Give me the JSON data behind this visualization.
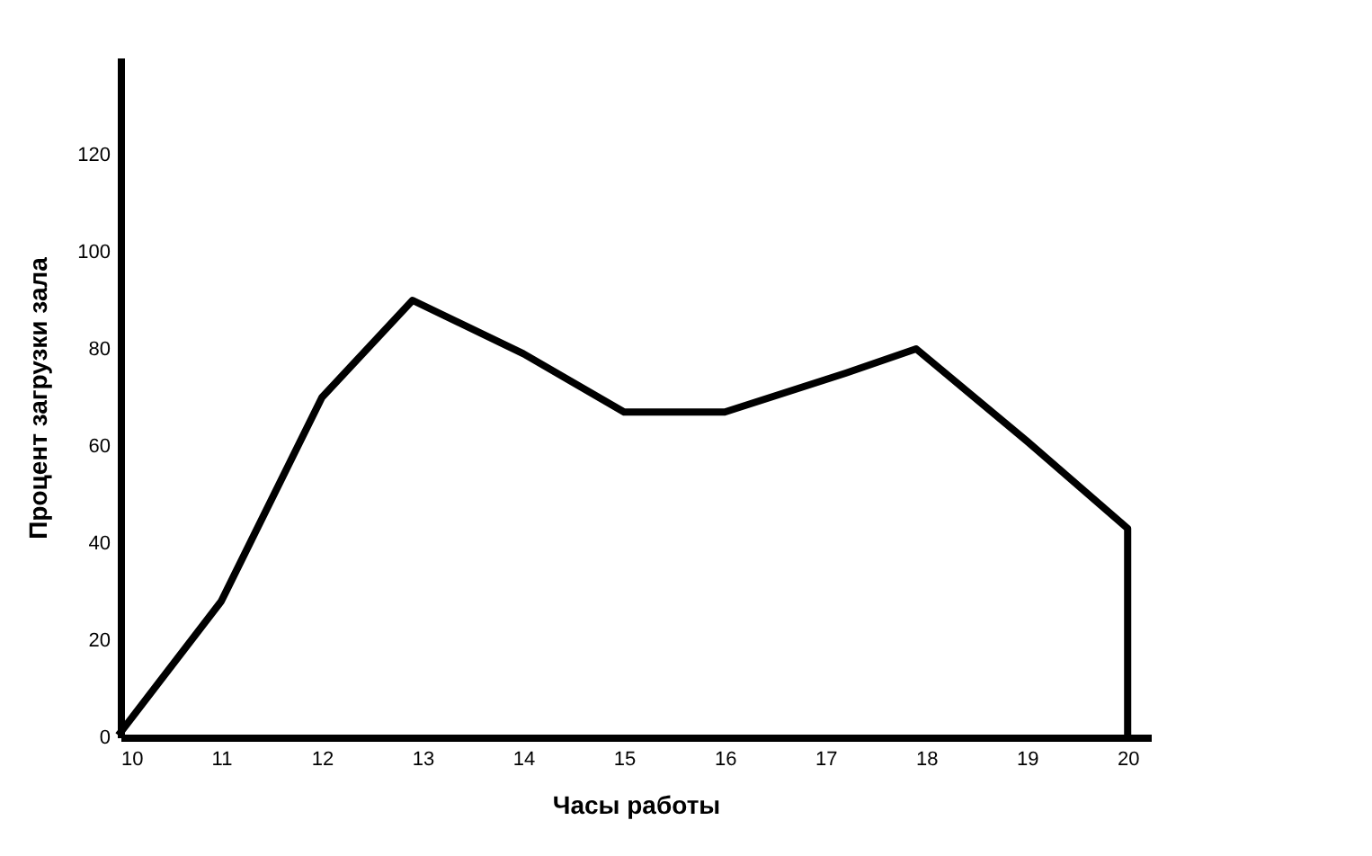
{
  "chart_data": {
    "type": "line",
    "xlabel": "Часы работы",
    "ylabel": "Процент загрузки зала",
    "x": [
      10,
      11,
      12,
      12.9,
      14,
      15,
      16,
      17.2,
      17.9,
      19,
      20,
      20
    ],
    "series": [
      {
        "color": "#000000",
        "values": [
          1,
          28,
          70,
          90,
          79,
          67,
          67,
          75,
          80,
          61,
          43,
          0
        ]
      }
    ],
    "xlim": [
      10,
      20.23
    ],
    "xticks": [
      10,
      11,
      12,
      13,
      14,
      15,
      16,
      17,
      18,
      19,
      20
    ],
    "ylim": [
      0,
      140
    ],
    "yticks": [
      0,
      20,
      40,
      60,
      80,
      100,
      120
    ],
    "grid": false,
    "marker": "none",
    "line_style": "solid"
  }
}
